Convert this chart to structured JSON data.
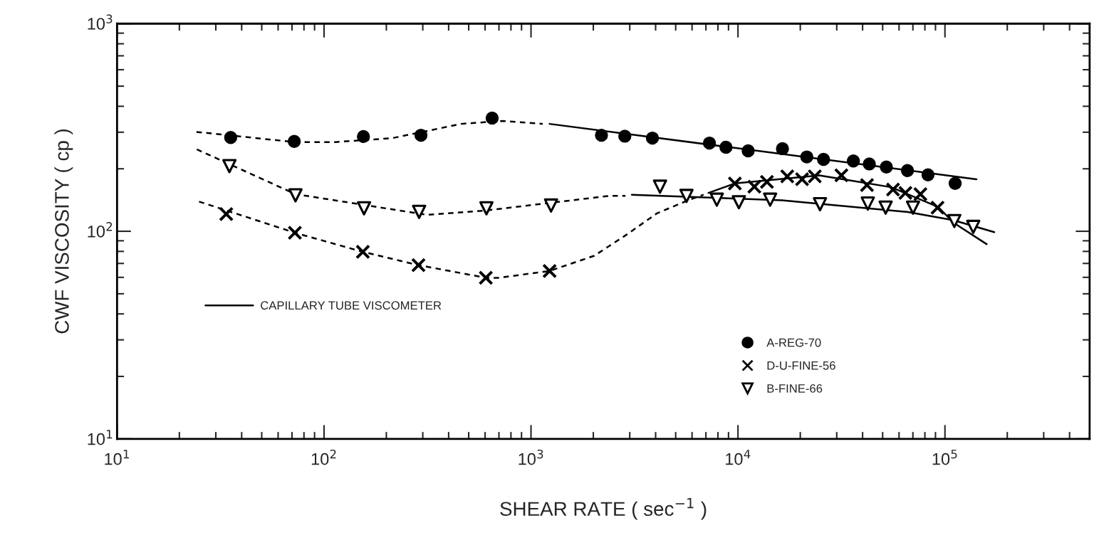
{
  "chart_data": {
    "type": "scatter",
    "xlabel": "SHEAR RATE ( sec$^{−1}$ )",
    "ylabel": "CWF VISCOSITY ( cp )",
    "log": "xy",
    "xlim": [
      10,
      500000
    ],
    "ylim": [
      10,
      1000
    ],
    "xticks": [
      {
        "value": 10,
        "label": "10$^{1}$"
      },
      {
        "value": 100,
        "label": "10$^{2}$"
      },
      {
        "value": 1000,
        "label": "10$^{3}$"
      },
      {
        "value": 10000,
        "label": "10$^{4}$"
      },
      {
        "value": 100000,
        "label": "10$^{5}$"
      }
    ],
    "yticks": [
      {
        "value": 10,
        "label": "10$^{1}$"
      },
      {
        "value": 100,
        "label": "10$^{2}$"
      },
      {
        "value": 1000,
        "label": "10$^{3}$"
      }
    ],
    "grid": false,
    "legend": "bottom",
    "series": [
      {
        "name": "A-REG-70",
        "type": "scatter",
        "marker": "circle",
        "color": "#000000",
        "x": [
          35.4,
          71.8,
          155,
          294,
          649,
          2190,
          2840,
          3860,
          7280,
          8750,
          11200,
          16400,
          21500,
          25900,
          36100,
          43100,
          52100,
          65900,
          82800,
          112000
        ],
        "values": [
          283,
          271,
          286,
          290,
          351,
          290,
          287,
          281,
          266,
          254,
          244,
          250,
          228,
          222,
          218,
          211,
          204,
          196,
          187,
          170
        ]
      },
      {
        "name": "D-U-FINE-56",
        "type": "scatter",
        "marker": "cross",
        "color": "#000000",
        "x": [
          33.7,
          72.3,
          154,
          286,
          605,
          1230,
          9660,
          12000,
          13800,
          17300,
          20400,
          23500,
          31600,
          42000,
          56100,
          64400,
          76100,
          92100
        ],
        "values": [
          121,
          98.4,
          79.6,
          68.7,
          59.7,
          64.4,
          170,
          164,
          173,
          184,
          178,
          184,
          186,
          167,
          159,
          153,
          151,
          130
        ]
      },
      {
        "name": "B-FINE-66",
        "type": "scatter",
        "marker": "triangle",
        "color": "#000000",
        "x": [
          34.9,
          72.8,
          156,
          288,
          609,
          1250,
          4200,
          5640,
          7900,
          10100,
          14300,
          24900,
          42400,
          51700,
          70100,
          111000,
          137000
        ],
        "values": [
          206,
          149,
          129,
          124,
          129,
          133,
          164,
          148,
          142,
          138,
          142,
          135,
          136,
          130,
          130,
          112,
          105
        ]
      },
      {
        "type": "line",
        "marker": "none",
        "line_style": "dashed",
        "color": "#000000",
        "x": [
          24.2,
          71.8,
          114,
          214,
          460,
          726,
          1140
        ],
        "values": [
          301,
          269,
          269,
          281,
          329,
          340,
          329
        ]
      },
      {
        "name": "CAPILLARY TUBE VISCOMETER",
        "type": "line",
        "marker": "none",
        "line_style": "solid",
        "color": "#000000",
        "x": [
          1230,
          142000
        ],
        "values": [
          329,
          178
        ]
      },
      {
        "type": "line",
        "marker": "none",
        "line_style": "dashed",
        "color": "#000000",
        "x": [
          24.9,
          72.3,
          154,
          286,
          605,
          701,
          1230,
          2020,
          2860,
          4060,
          5740,
          6820
        ],
        "values": [
          139,
          98.4,
          79.6,
          68.7,
          59.7,
          59.7,
          64.4,
          76.2,
          95.5,
          122,
          141,
          150
        ]
      },
      {
        "type": "line",
        "marker": "none",
        "line_style": "solid",
        "color": "#000000",
        "x": [
          7200,
          9660,
          24700,
          55000,
          92700,
          110000,
          159000
        ],
        "values": [
          153,
          170,
          186,
          163,
          131,
          110,
          86.7
        ]
      },
      {
        "type": "line",
        "marker": "none",
        "line_style": "dashed",
        "color": "#000000",
        "x": [
          24.3,
          72.8,
          314,
          609,
          2370,
          2860
        ],
        "values": [
          248,
          151,
          120,
          126,
          148,
          148
        ]
      },
      {
        "type": "line",
        "marker": "none",
        "line_style": "solid",
        "color": "#000000",
        "x": [
          3070,
          16300,
          65500,
          110000,
          173000
        ],
        "values": [
          150,
          141,
          124,
          113,
          99
        ]
      }
    ]
  }
}
